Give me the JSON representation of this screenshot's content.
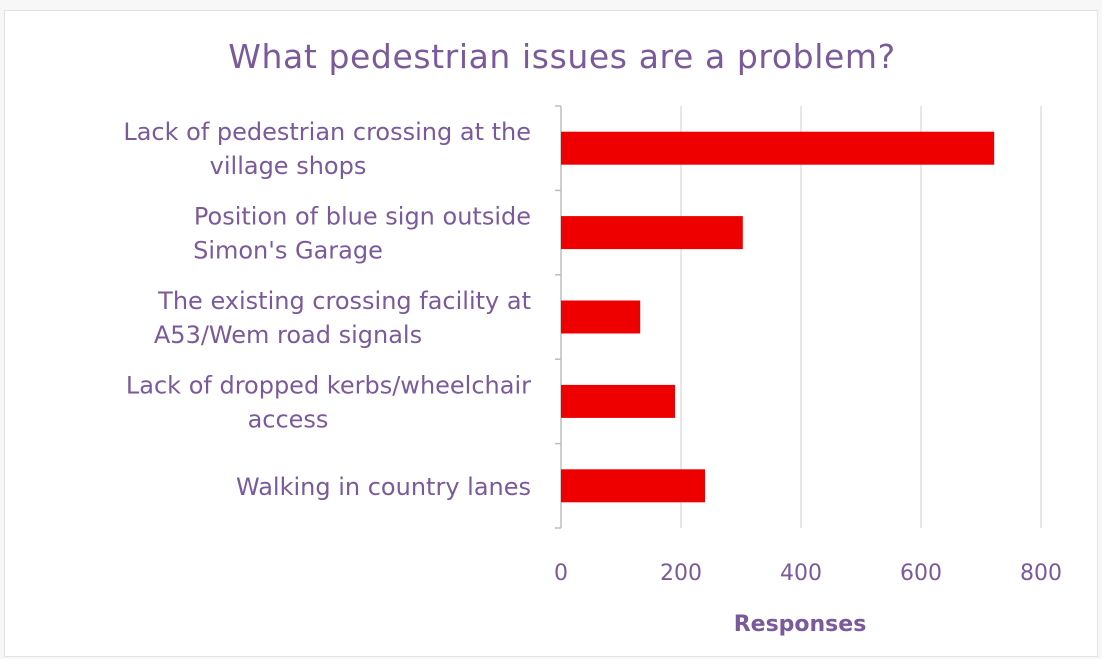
{
  "chart_data": {
    "type": "bar",
    "orientation": "horizontal",
    "title": "What pedestrian issues are a problem?",
    "xlabel": "Responses",
    "ylabel": "",
    "categories": [
      [
        "Lack of pedestrian crossing at the",
        "village shops"
      ],
      [
        "Position of blue sign outside",
        "Simon's Garage"
      ],
      [
        "The existing crossing facility at",
        "A53/Wem road signals"
      ],
      [
        "Lack of dropped kerbs/wheelchair",
        "access"
      ],
      [
        "Walking in country lanes"
      ]
    ],
    "values": [
      722,
      303,
      132,
      190,
      240
    ],
    "xlim": [
      0,
      800
    ],
    "xticks": [
      "0",
      "200",
      "400",
      "600",
      "800"
    ],
    "grid": true,
    "legend": "none",
    "colors": {
      "bar": "#ee0000",
      "text": "#7a5a9a",
      "grid": "#cfcfcf"
    }
  }
}
